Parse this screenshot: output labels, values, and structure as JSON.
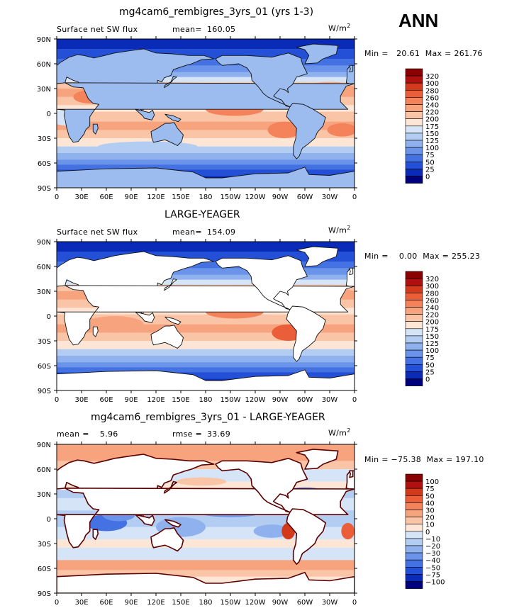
{
  "season": "ANN",
  "panels": [
    {
      "title": "mg4cam6_rembigres_3yrs_01 (yrs 1-3)",
      "left_label": "Surface net SW flux",
      "stat_label": "mean=",
      "stat_value": "160.05",
      "units": "W/m",
      "units_sup": "2",
      "minmax": "Min =   20.61  Max = 261.76",
      "colorbar": [
        "320",
        "300",
        "280",
        "260",
        "240",
        "220",
        "200",
        "175",
        "150",
        "125",
        "100",
        "75",
        "50",
        "25",
        "0"
      ],
      "colors": [
        "#8b0000",
        "#b01010",
        "#d33a1c",
        "#ea5f3a",
        "#f4825b",
        "#f7a37e",
        "#fac4a6",
        "#fde6d6",
        "#d6e4f7",
        "#b3cdf2",
        "#8fb2ee",
        "#6a93ea",
        "#4572e3",
        "#2350d6",
        "#0a2ab8",
        "#00007f"
      ],
      "show_stat_label": true
    },
    {
      "title": "LARGE-YEAGER",
      "left_label": "Surface net SW flux",
      "stat_label": "mean=",
      "stat_value": "154.09",
      "units": "W/m",
      "units_sup": "2",
      "minmax": "Min =    0.00  Max = 255.23",
      "colorbar": [
        "320",
        "300",
        "280",
        "260",
        "240",
        "220",
        "200",
        "175",
        "150",
        "125",
        "100",
        "75",
        "50",
        "25",
        "0"
      ],
      "colors": [
        "#8b0000",
        "#b01010",
        "#d33a1c",
        "#ea5f3a",
        "#f4825b",
        "#f7a37e",
        "#fac4a6",
        "#fde6d6",
        "#d6e4f7",
        "#b3cdf2",
        "#8fb2ee",
        "#6a93ea",
        "#4572e3",
        "#2350d6",
        "#0a2ab8",
        "#00007f"
      ]
    },
    {
      "title": "mg4cam6_rembigres_3yrs_01 - LARGE-YEAGER",
      "left_label": "mean =    5.96",
      "stat_label": "rmse =",
      "stat_value": "33.69",
      "units": "W/m",
      "units_sup": "2",
      "minmax": "Min = −75.38  Max = 197.10",
      "colorbar": [
        "100",
        "75",
        "50",
        "40",
        "30",
        "20",
        "10",
        "0",
        "−10",
        "−20",
        "−30",
        "−40",
        "−50",
        "−75",
        "−100"
      ],
      "colors": [
        "#8b0000",
        "#b01010",
        "#d33a1c",
        "#ea5f3a",
        "#f4825b",
        "#f7a37e",
        "#fac4a6",
        "#fde6d6",
        "#d6e4f7",
        "#b3cdf2",
        "#8fb2ee",
        "#6a93ea",
        "#4572e3",
        "#2350d6",
        "#0a2ab8",
        "#00007f"
      ]
    }
  ],
  "chart_data": [
    {
      "type": "heatmap",
      "title": "mg4cam6_rembigres_3yrs_01 (yrs 1-3)",
      "variable": "Surface net SW flux",
      "mean": 160.05,
      "min": 20.61,
      "max": 261.76,
      "units": "W/m2",
      "x_ticks": [
        "0",
        "30E",
        "60E",
        "90E",
        "120E",
        "150E",
        "180",
        "150W",
        "120W",
        "90W",
        "60W",
        "30W",
        "0"
      ],
      "y_ticks": [
        "90N",
        "60N",
        "30N",
        "0",
        "30S",
        "60S",
        "90S"
      ],
      "contour_levels": [
        0,
        25,
        50,
        75,
        100,
        125,
        150,
        175,
        200,
        220,
        240,
        260,
        280,
        300,
        320
      ]
    },
    {
      "type": "heatmap",
      "title": "LARGE-YEAGER",
      "variable": "Surface net SW flux",
      "mean": 154.09,
      "min": 0.0,
      "max": 255.23,
      "units": "W/m2",
      "x_ticks": [
        "0",
        "30E",
        "60E",
        "90E",
        "120E",
        "150E",
        "180",
        "150W",
        "120W",
        "90W",
        "60W",
        "30W",
        "0"
      ],
      "y_ticks": [
        "90N",
        "60N",
        "30N",
        "0",
        "30S",
        "60S",
        "90S"
      ],
      "contour_levels": [
        0,
        25,
        50,
        75,
        100,
        125,
        150,
        175,
        200,
        220,
        240,
        260,
        280,
        300,
        320
      ]
    },
    {
      "type": "heatmap",
      "title": "mg4cam6_rembigres_3yrs_01 - LARGE-YEAGER",
      "mean": 5.96,
      "rmse": 33.69,
      "min": -75.38,
      "max": 197.1,
      "units": "W/m2",
      "x_ticks": [
        "0",
        "30E",
        "60E",
        "90E",
        "120E",
        "150E",
        "180",
        "150W",
        "120W",
        "90W",
        "60W",
        "30W",
        "0"
      ],
      "y_ticks": [
        "90N",
        "60N",
        "30N",
        "0",
        "30S",
        "60S",
        "90S"
      ],
      "contour_levels": [
        -100,
        -75,
        -50,
        -40,
        -30,
        -20,
        -10,
        0,
        10,
        20,
        30,
        40,
        50,
        75,
        100
      ]
    }
  ]
}
